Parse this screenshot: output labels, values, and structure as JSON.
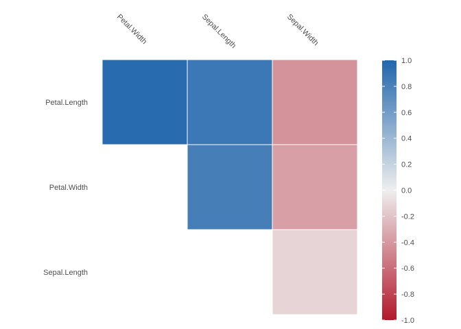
{
  "chart_data": {
    "type": "heatmap",
    "title": "",
    "columns": [
      "Petal.Width",
      "Sepal.Length",
      "Sepal.Width"
    ],
    "rows": [
      "Petal.Length",
      "Petal.Width",
      "Sepal.Length"
    ],
    "cells": [
      {
        "row": "Petal.Length",
        "col": "Petal.Width",
        "value": 0.96
      },
      {
        "row": "Petal.Length",
        "col": "Sepal.Length",
        "value": 0.87
      },
      {
        "row": "Petal.Length",
        "col": "Sepal.Width",
        "value": -0.43
      },
      {
        "row": "Petal.Width",
        "col": "Sepal.Length",
        "value": 0.82
      },
      {
        "row": "Petal.Width",
        "col": "Sepal.Width",
        "value": -0.37
      },
      {
        "row": "Sepal.Length",
        "col": "Sepal.Width",
        "value": -0.12
      }
    ],
    "legend": {
      "range": [
        -1,
        1
      ],
      "ticks": [
        1.0,
        0.8,
        0.6,
        0.4,
        0.2,
        0.0,
        -0.2,
        -0.4,
        -0.6,
        -0.8,
        -1.0
      ],
      "tick_labels": [
        "1.0",
        "0.8",
        "0.6",
        "0.4",
        "0.2",
        "0.0",
        "-0.2",
        "-0.4",
        "-0.6",
        "-0.8",
        "-1.0"
      ],
      "placement": "right"
    },
    "colors": {
      "low": "#B2182B",
      "mid": "#EEEEEE",
      "high": "#2166AC",
      "text": "#4d4d4d",
      "cell_border": "#ffffff"
    }
  }
}
